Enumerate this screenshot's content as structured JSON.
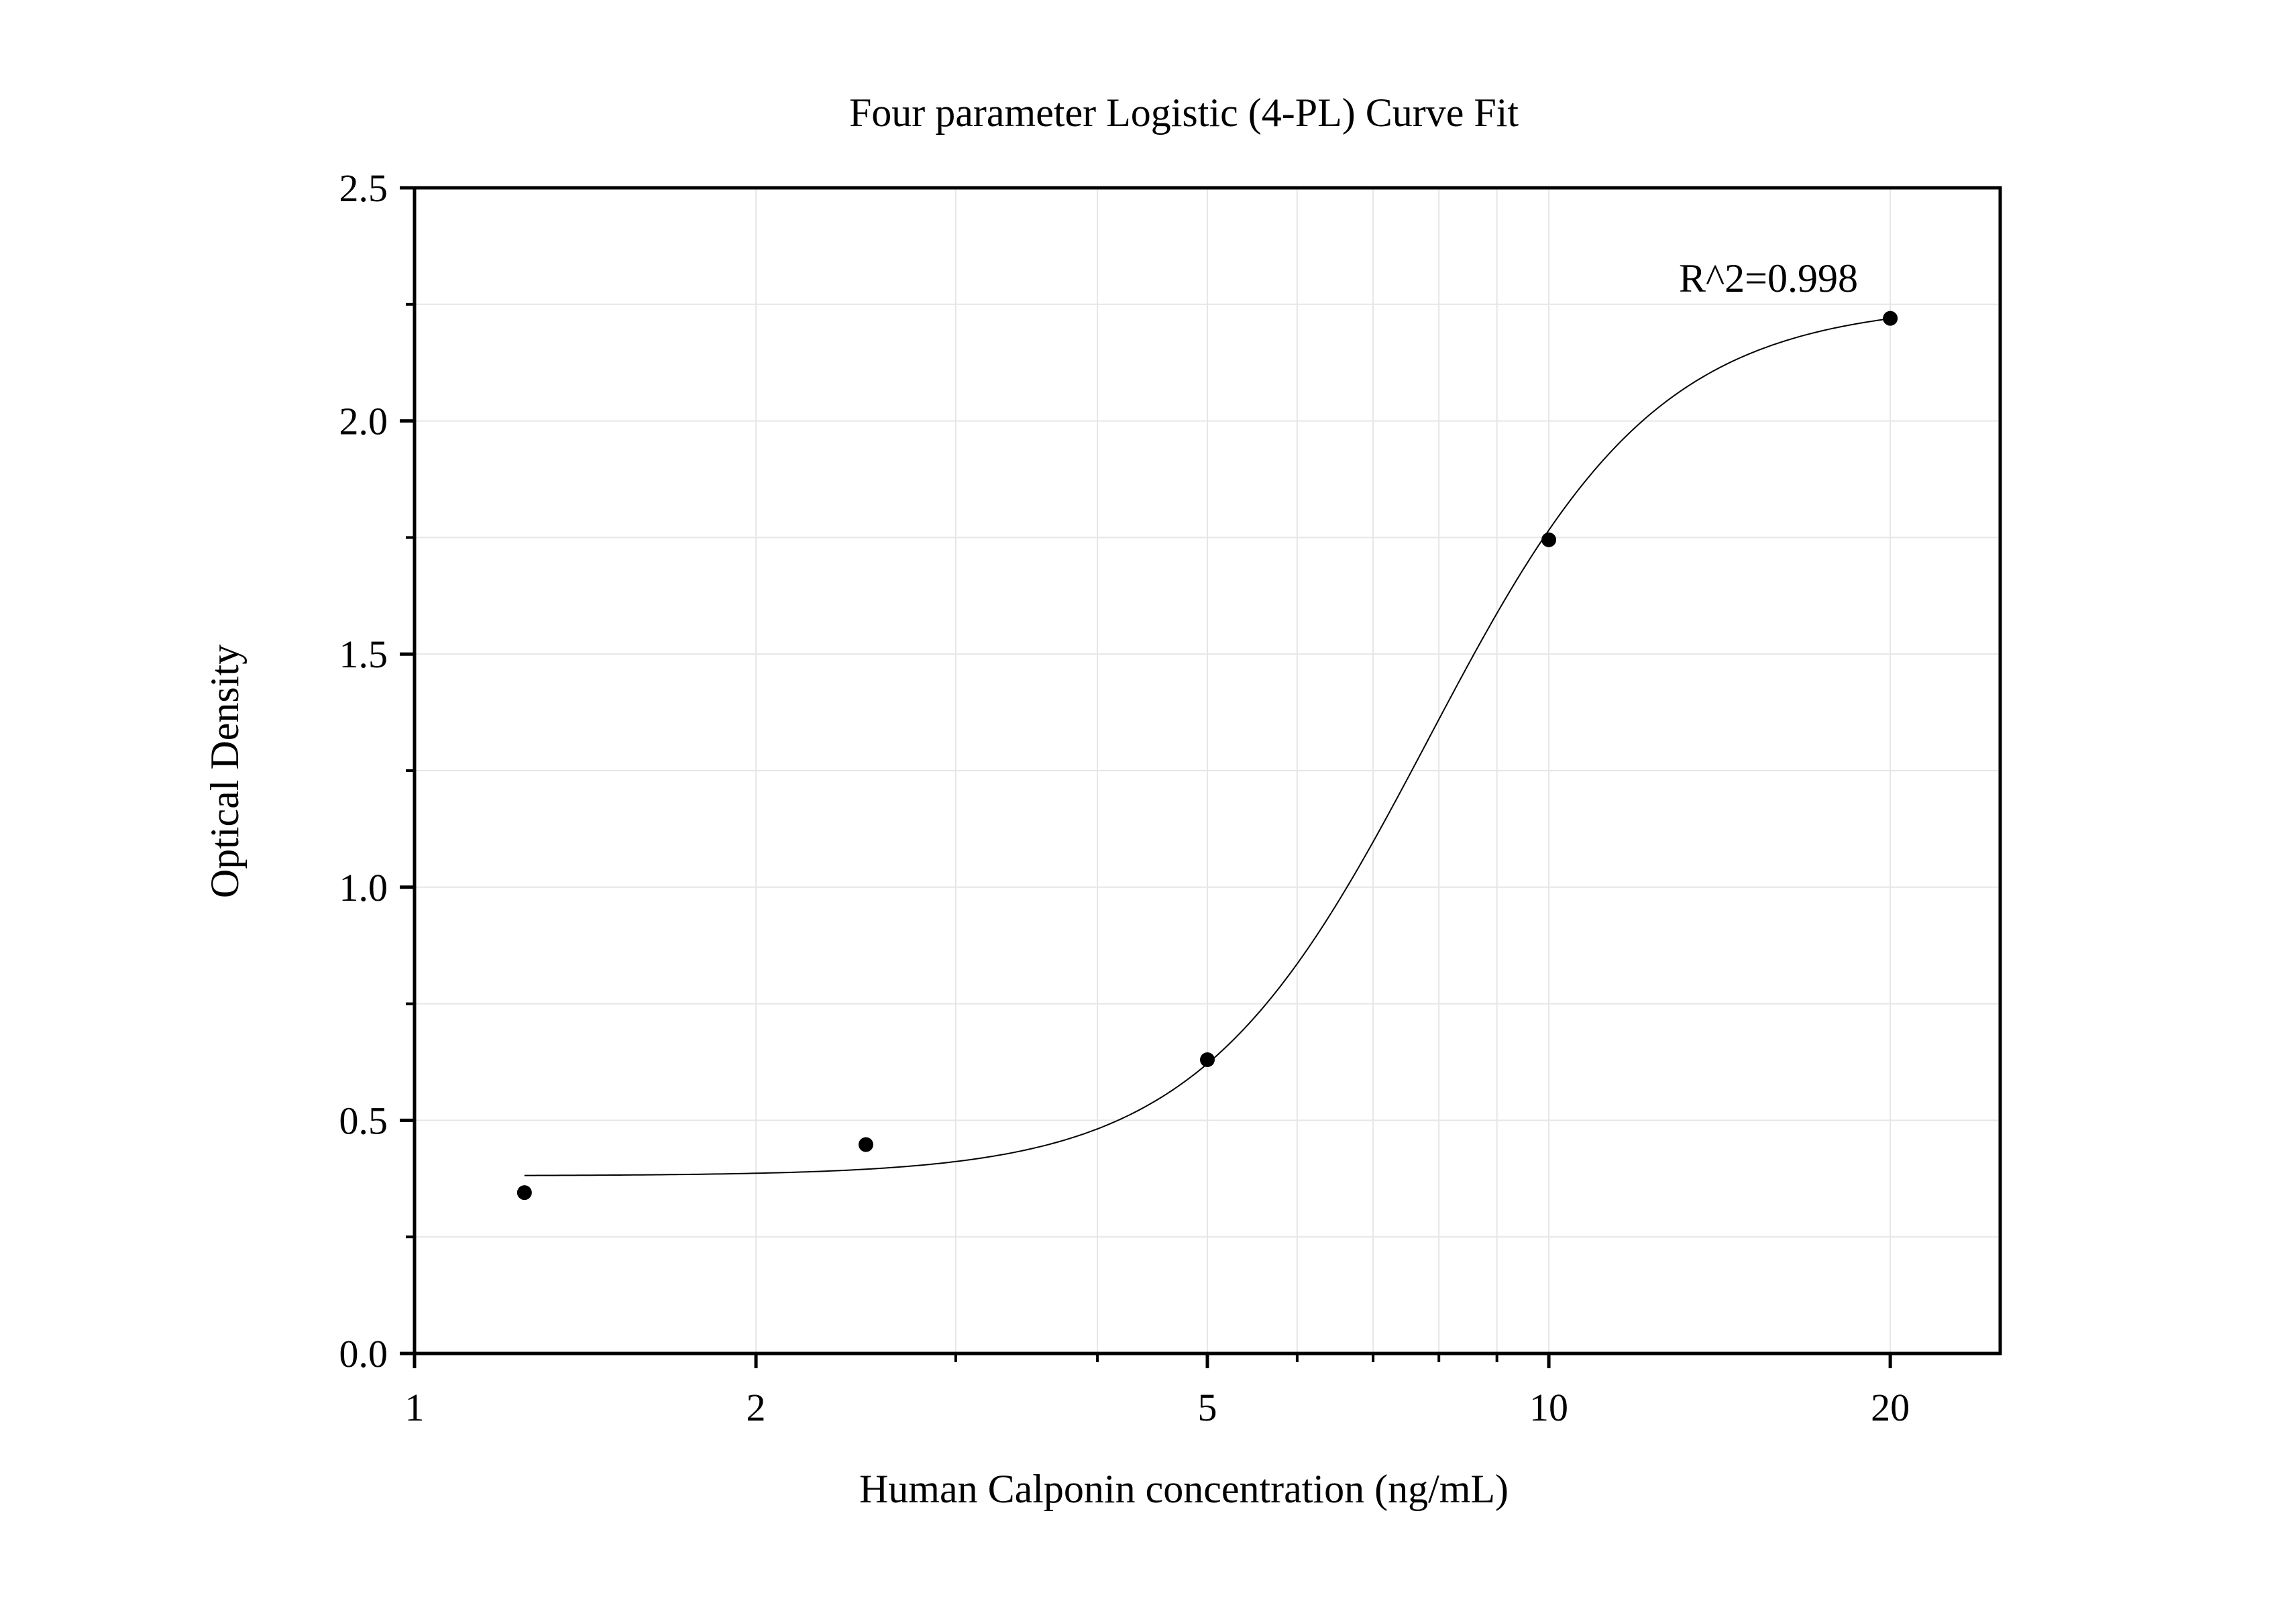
{
  "chart_data": {
    "type": "scatter",
    "title": "Four parameter Logistic (4-PL) Curve Fit",
    "xlabel": "Human Calponin concentration (ng/mL)",
    "ylabel": "Optical Density",
    "x_scale": "log",
    "xlim": [
      1,
      25
    ],
    "ylim": [
      0,
      2.5
    ],
    "x_ticks": [
      1,
      2,
      5,
      10,
      20
    ],
    "x_tick_labels": [
      "1",
      "2",
      "5",
      "10",
      "20"
    ],
    "y_ticks": [
      0,
      0.5,
      1.0,
      1.5,
      2.0,
      2.5
    ],
    "y_tick_labels": [
      "0.0",
      "0.5",
      "1.0",
      "1.5",
      "2.0",
      "2.5"
    ],
    "grid": true,
    "annotation": "R^2=0.998",
    "series": [
      {
        "type": "scatter",
        "x": [
          1.25,
          2.5,
          5,
          10,
          20
        ],
        "y": [
          0.345,
          0.448,
          0.63,
          1.745,
          2.22
        ]
      },
      {
        "type": "line",
        "fit": "4-PL",
        "x_range": [
          1.25,
          20
        ],
        "params": {
          "bottom": 0.381,
          "top": 2.253,
          "ec50": 7.83,
          "hill": 4.27
        }
      }
    ],
    "colors": {
      "points": "#000000",
      "curve": "#000000",
      "grid": "#e6e6e6",
      "axes": "#000000"
    }
  }
}
